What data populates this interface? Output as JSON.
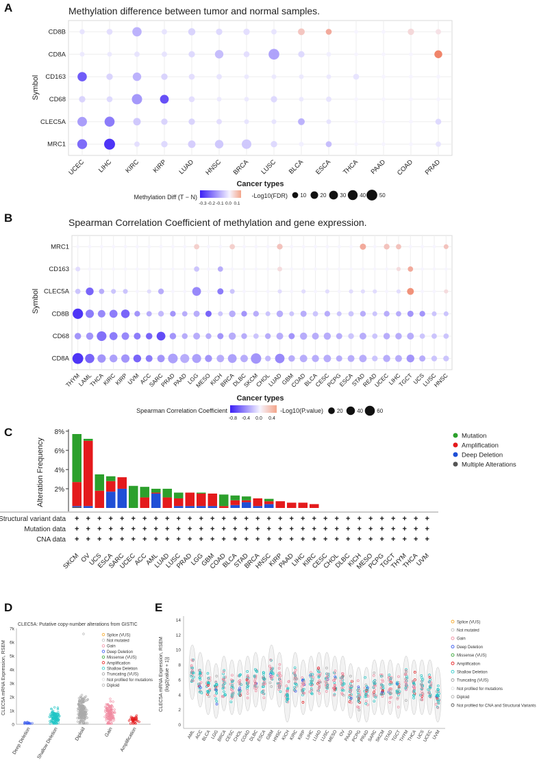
{
  "panels": {
    "a": {
      "letter": "A",
      "title": "Methylation difference between tumor and normal samples."
    },
    "b": {
      "letter": "B",
      "title": "Spearman Correlation Coefficient of methylation and gene expression."
    },
    "c": {
      "letter": "C"
    },
    "d": {
      "letter": "D"
    },
    "e": {
      "letter": "E"
    }
  },
  "chart_data": [
    {
      "id": "A",
      "type": "scatter",
      "title": "Methylation difference between tumor and normal samples.",
      "xlabel": "Cancer types",
      "ylabel": "Symbol",
      "categories": [
        "UCEC",
        "LIHC",
        "KIRC",
        "KIRP",
        "LUAD",
        "HNSC",
        "BRCA",
        "LUSC",
        "BLCA",
        "ESCA",
        "THCA",
        "PAAD",
        "COAD",
        "PRAD"
      ],
      "genes": [
        "CD8B",
        "CD8A",
        "CD163",
        "CD68",
        "CLEC5A",
        "MRC1"
      ],
      "color_legend": {
        "title": "Methylation Diff (T − N)",
        "ticks": [
          "-0.3",
          "-0.2",
          "-0.1",
          "0.0",
          "0.1"
        ],
        "range": [
          -0.35,
          0.12
        ]
      },
      "size_legend": {
        "title": "-Log10(FDR)",
        "values": [
          10,
          20,
          30,
          40,
          50
        ]
      },
      "diff": [
        [
          -0.03,
          -0.04,
          -0.12,
          -0.03,
          -0.06,
          -0.05,
          -0.04,
          -0.03,
          0.05,
          0.08,
          0,
          0,
          0.03,
          0.02
        ],
        [
          -0.02,
          -0.02,
          -0.03,
          -0.03,
          -0.05,
          -0.1,
          -0.04,
          -0.15,
          -0.05,
          -0.01,
          0,
          0,
          0,
          0.12
        ],
        [
          -0.28,
          -0.06,
          -0.12,
          -0.06,
          -0.04,
          -0.03,
          -0.02,
          -0.02,
          -0.02,
          -0.02,
          -0.03,
          0,
          0,
          0
        ],
        [
          -0.06,
          -0.05,
          -0.17,
          -0.3,
          -0.04,
          -0.02,
          -0.02,
          -0.05,
          -0.02,
          -0.03,
          0,
          0,
          0,
          0
        ],
        [
          -0.16,
          -0.22,
          -0.08,
          -0.06,
          -0.06,
          -0.04,
          -0.03,
          -0.03,
          -0.12,
          -0.03,
          0,
          0,
          0,
          -0.05
        ],
        [
          -0.25,
          -0.35,
          -0.04,
          -0.05,
          -0.07,
          -0.08,
          -0.08,
          -0.05,
          -0.01,
          -0.1,
          0,
          0,
          0,
          -0.03
        ]
      ],
      "fdr": [
        [
          5,
          8,
          28,
          6,
          14,
          10,
          10,
          6,
          12,
          8,
          2,
          2,
          10,
          6
        ],
        [
          4,
          4,
          6,
          6,
          10,
          22,
          8,
          40,
          10,
          4,
          2,
          2,
          2,
          18
        ],
        [
          28,
          10,
          22,
          10,
          8,
          6,
          4,
          4,
          4,
          4,
          8,
          2,
          2,
          2
        ],
        [
          10,
          8,
          36,
          24,
          8,
          4,
          4,
          10,
          4,
          6,
          2,
          2,
          2,
          2
        ],
        [
          30,
          34,
          16,
          10,
          10,
          6,
          4,
          4,
          12,
          4,
          2,
          2,
          2,
          8
        ],
        [
          32,
          42,
          6,
          10,
          16,
          22,
          30,
          10,
          4,
          8,
          2,
          2,
          2,
          6
        ]
      ]
    },
    {
      "id": "B",
      "type": "scatter",
      "title": "Spearman Correlation Coefficient of methylation and gene expression.",
      "xlabel": "Cancer types",
      "ylabel": "Symbol",
      "categories": [
        "THYM",
        "LAML",
        "THCA",
        "KIRC",
        "KIRP",
        "UVM",
        "ACC",
        "SARC",
        "PRAD",
        "PAAD",
        "LGG",
        "MESO",
        "KICH",
        "BRCA",
        "DLBC",
        "SKCM",
        "CHOL",
        "LUAD",
        "GBM",
        "COAD",
        "BLCA",
        "CESC",
        "PCPG",
        "ESCA",
        "STAD",
        "READ",
        "UCEC",
        "LIHC",
        "TGCT",
        "UCS",
        "LUSC",
        "HNSC"
      ],
      "genes": [
        "MRC1",
        "CD163",
        "CLEC5A",
        "CD8B",
        "CD68",
        "CD8A"
      ],
      "color_legend": {
        "title": "Spearman Correlation Coefficient",
        "ticks": [
          "-0.8",
          "-0.4",
          "0.0",
          "0.4"
        ],
        "range": [
          -0.8,
          0.45
        ]
      },
      "size_legend": {
        "title": "-Log10(P.value)",
        "values": [
          20,
          40,
          60
        ]
      },
      "rho": [
        [
          0,
          0,
          0,
          0,
          0,
          0,
          0,
          0,
          0,
          0,
          0.15,
          0,
          0,
          0.15,
          0,
          0,
          0,
          0.2,
          0,
          0,
          0,
          0,
          0,
          0,
          0.3,
          0,
          0.2,
          0.2,
          0,
          0,
          0,
          0.2
        ],
        [
          -0.1,
          0,
          0,
          0,
          0,
          0,
          0,
          0,
          0,
          0,
          -0.2,
          0,
          -0.3,
          0,
          0,
          0,
          0,
          0.1,
          0,
          0,
          0,
          0,
          0,
          0,
          0,
          0,
          0,
          0.1,
          0.3,
          0,
          0,
          0
        ],
        [
          -0.2,
          -0.6,
          -0.3,
          -0.2,
          -0.2,
          0,
          -0.1,
          -0.3,
          0,
          0,
          -0.45,
          0,
          -0.5,
          -0.2,
          0,
          0,
          0,
          -0.1,
          0,
          -0.1,
          0,
          -0.1,
          0,
          -0.1,
          -0.1,
          -0.1,
          0,
          -0.1,
          0.4,
          0,
          0,
          0.1
        ],
        [
          -0.8,
          -0.5,
          -0.45,
          -0.5,
          -0.6,
          -0.4,
          -0.3,
          -0.25,
          -0.4,
          -0.3,
          -0.3,
          -0.6,
          -0.2,
          -0.3,
          -0.4,
          -0.3,
          -0.2,
          -0.3,
          -0.2,
          -0.3,
          -0.2,
          -0.3,
          -0.2,
          -0.2,
          -0.3,
          -0.2,
          -0.3,
          -0.3,
          -0.4,
          -0.4,
          -0.2,
          -0.2
        ],
        [
          -0.4,
          -0.4,
          -0.55,
          -0.5,
          -0.45,
          -0.5,
          -0.6,
          -0.7,
          -0.4,
          -0.3,
          -0.3,
          -0.3,
          -0.4,
          -0.3,
          -0.3,
          -0.2,
          -0.3,
          -0.3,
          -0.4,
          -0.3,
          -0.3,
          -0.3,
          -0.3,
          -0.2,
          -0.3,
          -0.2,
          -0.3,
          -0.3,
          -0.3,
          -0.2,
          -0.2,
          -0.2
        ],
        [
          -0.8,
          -0.6,
          -0.4,
          -0.35,
          -0.4,
          -0.6,
          -0.5,
          -0.4,
          -0.35,
          -0.3,
          -0.35,
          -0.4,
          -0.3,
          -0.35,
          -0.3,
          -0.4,
          -0.25,
          -0.45,
          -0.3,
          -0.3,
          -0.3,
          -0.3,
          -0.3,
          -0.3,
          -0.3,
          -0.2,
          -0.3,
          -0.3,
          -0.4,
          -0.3,
          -0.2,
          -0.2
        ]
      ],
      "logp": [
        [
          2,
          2,
          2,
          2,
          2,
          2,
          2,
          2,
          2,
          2,
          8,
          2,
          2,
          8,
          2,
          2,
          2,
          10,
          2,
          2,
          2,
          2,
          2,
          2,
          12,
          2,
          10,
          8,
          2,
          2,
          2,
          6
        ],
        [
          6,
          2,
          2,
          2,
          2,
          2,
          2,
          2,
          2,
          2,
          8,
          2,
          8,
          2,
          2,
          2,
          2,
          6,
          2,
          2,
          2,
          2,
          2,
          2,
          2,
          2,
          2,
          4,
          8,
          2,
          2,
          2
        ],
        [
          8,
          22,
          8,
          6,
          6,
          2,
          4,
          10,
          2,
          2,
          30,
          2,
          12,
          6,
          2,
          2,
          2,
          4,
          2,
          4,
          2,
          4,
          2,
          4,
          4,
          4,
          2,
          4,
          16,
          2,
          2,
          4
        ],
        [
          45,
          26,
          20,
          24,
          28,
          10,
          8,
          10,
          10,
          8,
          12,
          12,
          6,
          14,
          10,
          10,
          6,
          14,
          6,
          12,
          8,
          10,
          6,
          8,
          10,
          6,
          10,
          8,
          12,
          10,
          6,
          6
        ],
        [
          14,
          18,
          38,
          24,
          20,
          16,
          14,
          30,
          14,
          10,
          16,
          10,
          12,
          18,
          10,
          8,
          10,
          16,
          12,
          18,
          16,
          18,
          12,
          10,
          16,
          8,
          14,
          14,
          16,
          8,
          8,
          8
        ],
        [
          50,
          34,
          26,
          22,
          26,
          22,
          16,
          20,
          38,
          32,
          32,
          18,
          20,
          30,
          20,
          45,
          10,
          36,
          14,
          20,
          18,
          20,
          12,
          16,
          20,
          10,
          18,
          16,
          22,
          12,
          10,
          10
        ]
      ]
    },
    {
      "id": "C",
      "type": "bar",
      "ylabel": "Alteration Frequency",
      "yticks": [
        "8%",
        "6%",
        "4%",
        "2%"
      ],
      "ylim": [
        0,
        8.2
      ],
      "categories": [
        "SKCM",
        "OV",
        "UCS",
        "ESCA",
        "SARC",
        "UCEC",
        "ACC",
        "AML",
        "LUAD",
        "LUSC",
        "PRAD",
        "LGG",
        "GBM",
        "COAD",
        "BLCA",
        "STAD",
        "BRCA",
        "HNSC",
        "KIRP",
        "PAAD",
        "LIHC",
        "KIRC",
        "CESC",
        "CHOL",
        "DLBC",
        "KICH",
        "MESO",
        "PCPG",
        "TGCT",
        "THYM",
        "THCA",
        "UVM"
      ],
      "legend": [
        {
          "name": "Mutation",
          "color": "#2ca02c"
        },
        {
          "name": "Amplification",
          "color": "#e41a1c"
        },
        {
          "name": "Deep Deletion",
          "color": "#1f4fd6"
        },
        {
          "name": "Multiple Alterations",
          "color": "#555555"
        }
      ],
      "series": [
        {
          "name": "Multiple Alterations",
          "values": [
            0.1,
            0,
            0,
            0,
            0,
            0,
            0,
            0,
            0,
            0,
            0,
            0,
            0,
            0,
            0,
            0,
            0,
            0,
            0,
            0,
            0,
            0,
            0,
            0,
            0,
            0,
            0,
            0,
            0,
            0,
            0,
            0
          ]
        },
        {
          "name": "Deep Deletion",
          "values": [
            0.1,
            0.2,
            0,
            1.7,
            2.0,
            0,
            0,
            1.5,
            0,
            0.2,
            0.2,
            0.2,
            0.2,
            0,
            0.3,
            0.6,
            0.2,
            0.4,
            0,
            0,
            0,
            0,
            0,
            0,
            0,
            0,
            0,
            0,
            0,
            0,
            0,
            0
          ]
        },
        {
          "name": "Amplification",
          "values": [
            2.5,
            6.8,
            1.8,
            1.1,
            1.2,
            0,
            1.1,
            0.1,
            1.1,
            0.8,
            1.4,
            1.3,
            1.3,
            0.2,
            0.5,
            0.2,
            0.8,
            0.3,
            0.7,
            0.55,
            0.55,
            0.4,
            0,
            0,
            0,
            0,
            0,
            0,
            0,
            0,
            0,
            0
          ]
        },
        {
          "name": "Mutation",
          "values": [
            5.0,
            0.2,
            1.7,
            0.5,
            0,
            2.3,
            1.1,
            0.4,
            0.9,
            0.6,
            0,
            0.1,
            0,
            1.2,
            0.5,
            0.4,
            0,
            0.25,
            0,
            0,
            0,
            0,
            0,
            0,
            0,
            0,
            0,
            0,
            0,
            0,
            0,
            0
          ]
        }
      ],
      "data_rows": [
        "Structural variant data",
        "Mutation data",
        "CNA data"
      ],
      "row_mark": "+"
    },
    {
      "id": "D",
      "type": "scatter",
      "title": "CLEC5A: Putative copy-number alterations from GISTIC",
      "ylabel": "CLEC5A mRNA Expression, RSEM",
      "yticks": [
        "7k",
        "6k",
        "5k",
        "4k",
        "3k",
        "2k",
        "1k",
        "0"
      ],
      "ylim": [
        0,
        7000
      ],
      "categories": [
        "Deep Deletion",
        "Shallow Deletion",
        "Diploid",
        "Gain",
        "Amplification"
      ],
      "legend": [
        "Splice (VUS)",
        "Not mutated",
        "Gain",
        "Deep Deletion",
        "Missense (VUS)",
        "Amplification",
        "Shallow Deletion",
        "Truncating (VUS)",
        "Not profiled for mutations",
        "Diploid"
      ]
    },
    {
      "id": "E",
      "type": "scatter",
      "ylabel": "CLEC5A mRNA Expression, RSEM",
      "ylabel2": "(log2(value + 1))",
      "yticks": [
        "14",
        "12",
        "10",
        "8",
        "6",
        "4",
        "2",
        "0"
      ],
      "ylim": [
        -0.5,
        14.5
      ],
      "categories": [
        "AML",
        "ACC",
        "BLCA",
        "LGG",
        "BRCA",
        "CESC",
        "CHOL",
        "COAD",
        "DLBC",
        "ESCA",
        "GBM",
        "HNSC",
        "KICH",
        "KIRC",
        "KIRP",
        "LIHC",
        "LUAD",
        "LUSC",
        "MESO",
        "OV",
        "PAAD",
        "PCPG",
        "PRAD",
        "SARC",
        "SKCM",
        "STAD",
        "TGCT",
        "THYM",
        "THCA",
        "UCS",
        "UCEC",
        "UVM"
      ],
      "legend": [
        "Splice (VUS)",
        "Not mutated",
        "Gain",
        "Deep Deletion",
        "Missense (VUS)",
        "Amplification",
        "Shallow Deletion",
        "Truncating (VUS)",
        "Not profiled for mutations",
        "Diploid",
        "Not profiled for CNA and Structural Variants"
      ]
    }
  ]
}
